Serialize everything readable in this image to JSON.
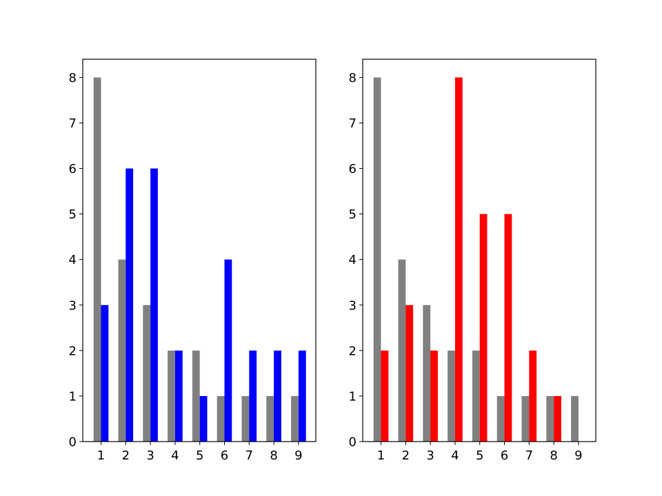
{
  "chart_data": [
    {
      "type": "bar",
      "title": "",
      "xlabel": "",
      "ylabel": "",
      "categories": [
        "1",
        "2",
        "3",
        "4",
        "5",
        "6",
        "7",
        "8",
        "9"
      ],
      "ylim": [
        0,
        8.4
      ],
      "yticks": [
        "0",
        "1",
        "2",
        "3",
        "4",
        "5",
        "6",
        "7",
        "8"
      ],
      "grid": false,
      "series": [
        {
          "values": [
            8,
            4,
            3,
            2,
            2,
            1,
            1,
            1,
            1
          ],
          "color": "#808080"
        },
        {
          "values": [
            3,
            6,
            6,
            2,
            1,
            4,
            2,
            2,
            2
          ],
          "color": "#0000ff"
        }
      ]
    },
    {
      "type": "bar",
      "title": "",
      "xlabel": "",
      "ylabel": "",
      "categories": [
        "1",
        "2",
        "3",
        "4",
        "5",
        "6",
        "7",
        "8",
        "9"
      ],
      "ylim": [
        0,
        8.4
      ],
      "yticks": [
        "0",
        "1",
        "2",
        "3",
        "4",
        "5",
        "6",
        "7",
        "8"
      ],
      "grid": false,
      "series": [
        {
          "values": [
            8,
            4,
            3,
            2,
            2,
            1,
            1,
            1,
            1
          ],
          "color": "#808080"
        },
        {
          "values": [
            2,
            3,
            2,
            8,
            5,
            5,
            2,
            1,
            0
          ],
          "color": "#ff0000"
        }
      ]
    }
  ]
}
